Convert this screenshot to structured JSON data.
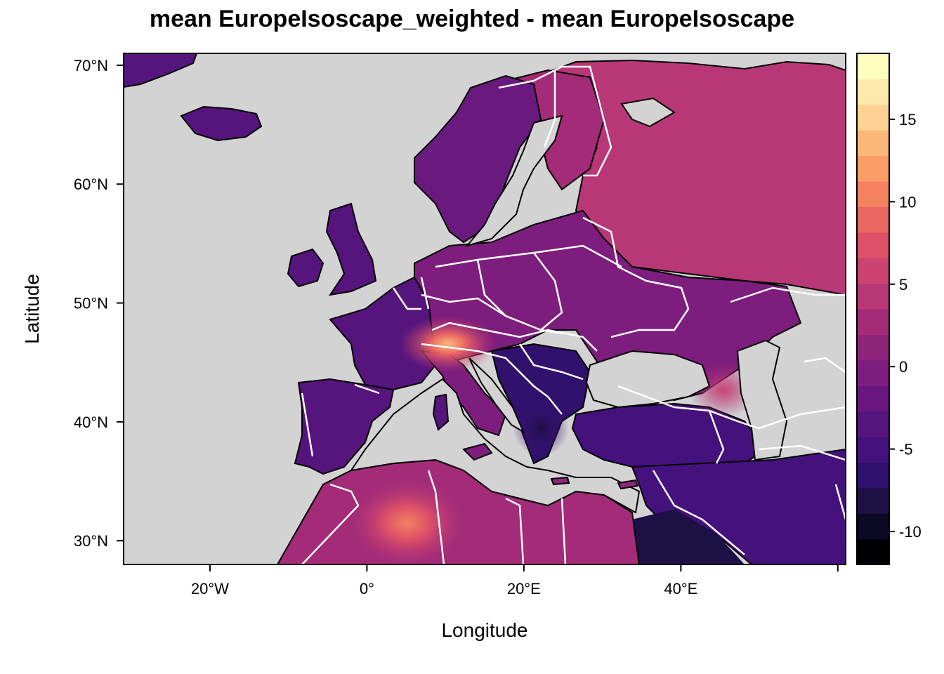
{
  "title": "mean EuropeIsoscape_weighted - mean EuropeIsoscape",
  "axes": {
    "xlabel": "Longitude",
    "ylabel": "Latitude",
    "x_ticks": [
      {
        "label": "20°W",
        "value": -20
      },
      {
        "label": "0°",
        "value": 0
      },
      {
        "label": "20°E",
        "value": 20
      },
      {
        "label": "40°E",
        "value": 40
      }
    ],
    "y_ticks": [
      {
        "label": "70°N",
        "value": 70
      },
      {
        "label": "60°N",
        "value": 60
      },
      {
        "label": "50°N",
        "value": 50
      },
      {
        "label": "40°N",
        "value": 40
      },
      {
        "label": "30°N",
        "value": 30
      }
    ],
    "lon_range": [
      -31,
      61
    ],
    "lat_range": [
      28,
      71
    ]
  },
  "colorbar": {
    "range": [
      -12,
      19
    ],
    "tick_labels": [
      {
        "label": "15",
        "value": 15
      },
      {
        "label": "10",
        "value": 10
      },
      {
        "label": "5",
        "value": 5
      },
      {
        "label": "0",
        "value": 0
      },
      {
        "label": "-5",
        "value": -5
      },
      {
        "label": "-10",
        "value": -10
      }
    ],
    "colors": [
      "#000004",
      "#0b0924",
      "#1c1044",
      "#30116e",
      "#44117d",
      "#56147d",
      "#69177e",
      "#7d1d7e",
      "#8f247b",
      "#a32b78",
      "#b83776",
      "#cb4371",
      "#dd5067",
      "#eb6762",
      "#f4825f",
      "#f99d68",
      "#fcb87a",
      "#fdd292",
      "#fde9ab",
      "#fcfdbf"
    ]
  },
  "colors": {
    "ocean": "#d3d3d3",
    "land_base": "#6a1a7e",
    "borders": "#ffffff",
    "coastline": "#000000"
  }
}
